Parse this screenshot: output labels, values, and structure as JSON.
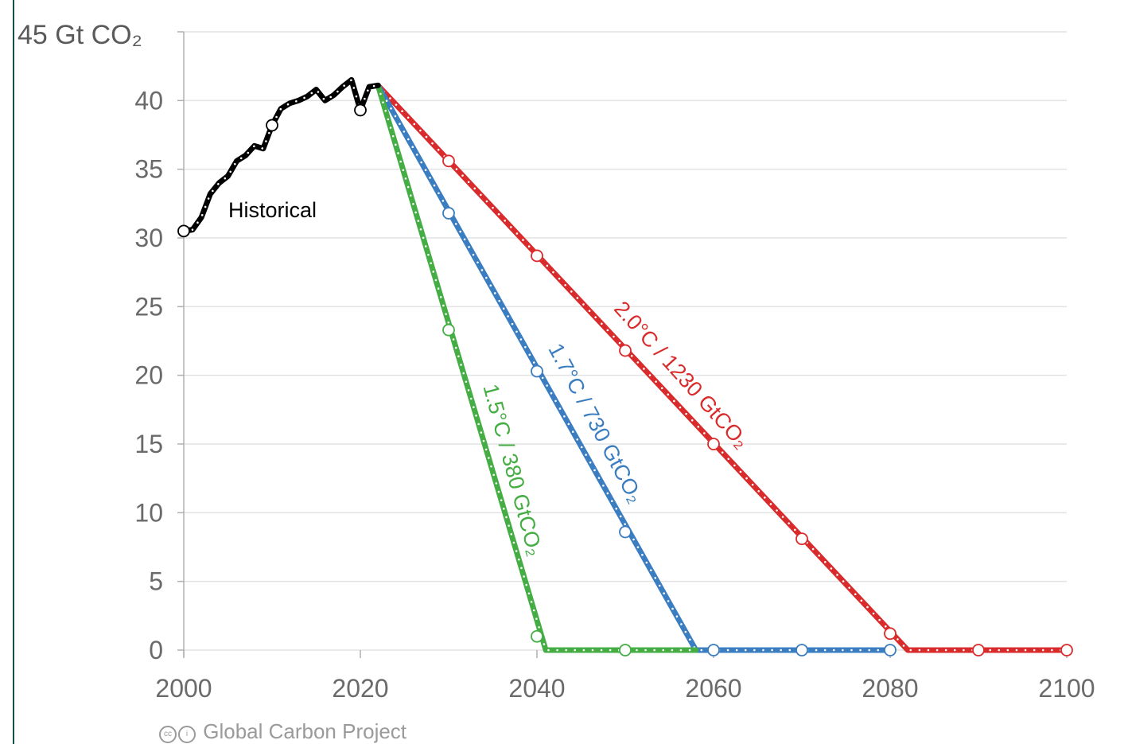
{
  "chart_data": {
    "type": "line",
    "title": "",
    "xlabel": "",
    "ylabel": "45 Gt CO₂",
    "xlim": [
      2000,
      2100
    ],
    "ylim": [
      0,
      45
    ],
    "x_ticks": [
      "2000",
      "2020",
      "2040",
      "2060",
      "2080",
      "2100"
    ],
    "y_ticks": [
      "0",
      "5",
      "10",
      "15",
      "20",
      "25",
      "30",
      "35",
      "40"
    ],
    "grid": true,
    "series": [
      {
        "name": "Historical",
        "color": "#000000",
        "points": [
          [
            2000,
            30.5
          ],
          [
            2001,
            30.6
          ],
          [
            2002,
            31.5
          ],
          [
            2003,
            33.2
          ],
          [
            2004,
            34
          ],
          [
            2005,
            34.5
          ],
          [
            2006,
            35.6
          ],
          [
            2007,
            36
          ],
          [
            2008,
            36.7
          ],
          [
            2009,
            36.5
          ],
          [
            2010,
            38.2
          ],
          [
            2011,
            39.4
          ],
          [
            2012,
            39.8
          ],
          [
            2013,
            40
          ],
          [
            2014,
            40.3
          ],
          [
            2015,
            40.8
          ],
          [
            2016,
            40
          ],
          [
            2017,
            40.4
          ],
          [
            2018,
            41
          ],
          [
            2019,
            41.5
          ],
          [
            2020,
            39.3
          ],
          [
            2021,
            41
          ],
          [
            2022,
            41.1
          ]
        ],
        "markers": [
          [
            2000,
            30.5
          ],
          [
            2010,
            38.2
          ],
          [
            2020,
            39.3
          ]
        ]
      },
      {
        "name": "2.0°C / 1230 GtCO₂",
        "color": "#d92b2b",
        "points": [
          [
            2022,
            41.1
          ],
          [
            2082,
            0
          ],
          [
            2100,
            0
          ]
        ],
        "markers": [
          [
            2030,
            35.6
          ],
          [
            2040,
            28.7
          ],
          [
            2050,
            21.8
          ],
          [
            2060,
            15
          ],
          [
            2070,
            8.1
          ],
          [
            2080,
            1.2
          ],
          [
            2090,
            0
          ],
          [
            2100,
            0
          ]
        ]
      },
      {
        "name": "1.7°C / 730 GtCO₂",
        "color": "#3a7dc0",
        "points": [
          [
            2022,
            41.1
          ],
          [
            2058,
            0
          ],
          [
            2080,
            0
          ]
        ],
        "markers": [
          [
            2030,
            31.8
          ],
          [
            2040,
            20.3
          ],
          [
            2050,
            8.6
          ],
          [
            2060,
            0
          ],
          [
            2070,
            0
          ],
          [
            2080,
            0
          ]
        ]
      },
      {
        "name": "1.5°C / 380 GtCO₂",
        "color": "#44ad44",
        "points": [
          [
            2022,
            41.1
          ],
          [
            2041,
            0
          ],
          [
            2058,
            0
          ]
        ],
        "markers": [
          [
            2030,
            23.3
          ],
          [
            2040,
            1
          ],
          [
            2050,
            0
          ]
        ]
      }
    ]
  },
  "labels": {
    "historical": "Historical",
    "s20": "2.0°C / 1230 GtCO₂",
    "s17": "1.7°C / 730 GtCO₂",
    "s15": "1.5°C / 380 GtCO₂"
  },
  "credit": "Global Carbon Project"
}
